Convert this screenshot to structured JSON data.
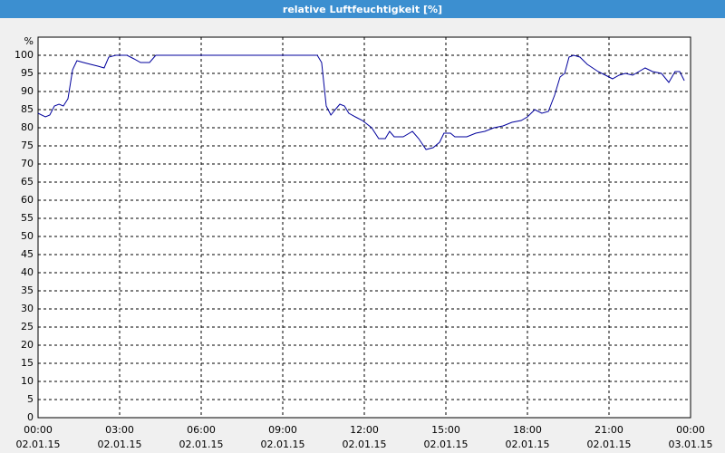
{
  "chart_data": {
    "type": "line",
    "title": "relative Luftfeuchtigkeit [%]",
    "ylabel": "%",
    "x": [
      0,
      0.27,
      0.43,
      0.6,
      0.77,
      0.93,
      1.1,
      1.27,
      1.43,
      1.67,
      1.93,
      2.2,
      2.43,
      2.6,
      2.87,
      3.27,
      3.53,
      3.77,
      4.1,
      4.33,
      10.27,
      10.43,
      10.6,
      10.77,
      10.93,
      11.1,
      11.27,
      11.43,
      11.67,
      11.93,
      12.27,
      12.53,
      12.77,
      12.93,
      13.1,
      13.43,
      13.77,
      14,
      14.27,
      14.53,
      14.77,
      14.93,
      15.17,
      15.33,
      15.77,
      16.1,
      16.43,
      16.77,
      17.1,
      17.43,
      17.77,
      18,
      18.27,
      18.53,
      18.77,
      19,
      19.2,
      19.37,
      19.53,
      19.7,
      19.93,
      20.2,
      20.6,
      20.87,
      21.13,
      21.37,
      21.6,
      21.87,
      22.1,
      22.33,
      22.6,
      22.93,
      23.2,
      23.43,
      23.6,
      23.77
    ],
    "series": [
      {
        "color": "#00009c",
        "values": [
          84,
          83,
          83.5,
          86,
          86.5,
          86,
          88,
          96,
          98.5,
          98,
          97.5,
          97,
          96.5,
          99.5,
          100,
          100,
          99,
          98,
          98,
          100,
          100,
          98,
          86,
          83.5,
          85,
          86.5,
          86,
          84,
          83,
          82,
          80,
          77,
          77,
          79,
          77.5,
          77.5,
          79,
          77,
          74,
          74.5,
          76,
          78.5,
          78.5,
          77.5,
          77.5,
          78.5,
          79,
          80,
          80.5,
          81.5,
          82,
          83,
          85,
          84,
          84.5,
          89,
          94,
          95,
          99.5,
          100,
          99.5,
          97.5,
          95.5,
          94.5,
          93.5,
          94.5,
          95,
          94.5,
          95.5,
          96.5,
          95.5,
          95,
          92.5,
          95.5,
          95.5,
          93
        ]
      }
    ],
    "xlim": [
      0,
      24
    ],
    "xticks": [
      {
        "value": 0,
        "label": [
          "00:00",
          "02.01.15"
        ]
      },
      {
        "value": 3,
        "label": [
          "03:00",
          "02.01.15"
        ]
      },
      {
        "value": 6,
        "label": [
          "06:00",
          "02.01.15"
        ]
      },
      {
        "value": 9,
        "label": [
          "09:00",
          "02.01.15"
        ]
      },
      {
        "value": 12,
        "label": [
          "12:00",
          "02.01.15"
        ]
      },
      {
        "value": 15,
        "label": [
          "15:00",
          "02.01.15"
        ]
      },
      {
        "value": 18,
        "label": [
          "18:00",
          "02.01.15"
        ]
      },
      {
        "value": 21,
        "label": [
          "21:00",
          "02.01.15"
        ]
      },
      {
        "value": 24,
        "label": [
          "00:00",
          "03.01.15"
        ]
      }
    ],
    "ylim": [
      0,
      105
    ],
    "yticks": [
      0,
      5,
      10,
      15,
      20,
      25,
      30,
      35,
      40,
      45,
      50,
      55,
      60,
      65,
      70,
      75,
      80,
      85,
      90,
      95,
      100
    ],
    "grid": true
  }
}
